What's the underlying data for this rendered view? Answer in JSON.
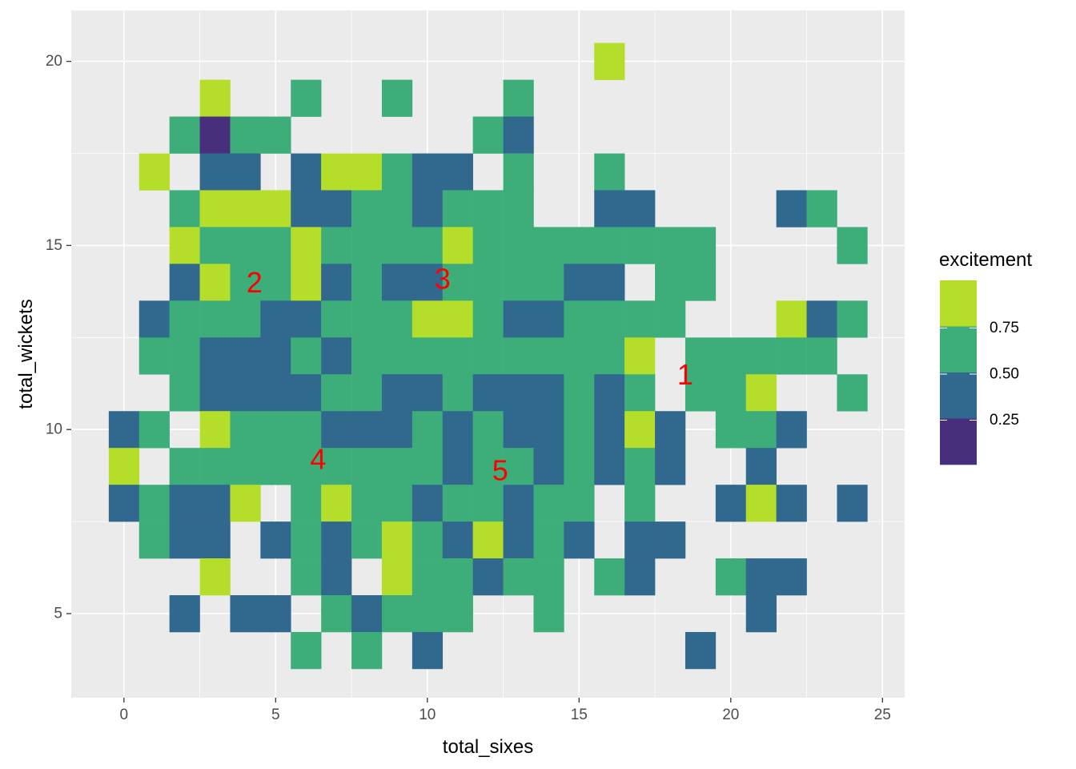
{
  "chart_data": {
    "type": "heatmap",
    "title": "",
    "xlabel": "total_sixes",
    "ylabel": "total_wickets",
    "xlim": [
      -1.7,
      25.4
    ],
    "ylim": [
      2.8,
      21.5
    ],
    "x_ticks": [
      0,
      5,
      10,
      15,
      20,
      25
    ],
    "y_ticks": [
      5,
      10,
      15,
      20
    ],
    "bin_width": 1,
    "grid": true,
    "legend": {
      "title": "excitement",
      "position": "right",
      "bins": [
        {
          "color": "#B5DE2B",
          "label": ""
        },
        {
          "color": "#3DAE7A",
          "label": "0.75"
        },
        {
          "color": "#31688E",
          "label": "0.50"
        },
        {
          "color": "#472F7D",
          "label": "0.25"
        }
      ]
    },
    "level_colors": [
      "#472F7D",
      "#31688E",
      "#3DAE7A",
      "#B5DE2B"
    ],
    "level_values": [
      0.125,
      0.375,
      0.625,
      0.875
    ],
    "cells": [
      [
        16,
        20,
        3
      ],
      [
        3,
        19,
        3
      ],
      [
        6,
        19,
        2
      ],
      [
        9,
        19,
        2
      ],
      [
        13,
        19,
        2
      ],
      [
        2,
        18,
        2
      ],
      [
        3,
        18,
        0
      ],
      [
        4,
        18,
        2
      ],
      [
        5,
        18,
        2
      ],
      [
        12,
        18,
        2
      ],
      [
        13,
        18,
        1
      ],
      [
        1,
        17,
        3
      ],
      [
        3,
        17,
        1
      ],
      [
        4,
        17,
        1
      ],
      [
        6,
        17,
        1
      ],
      [
        7,
        17,
        3
      ],
      [
        8,
        17,
        3
      ],
      [
        9,
        17,
        2
      ],
      [
        10,
        17,
        1
      ],
      [
        11,
        17,
        1
      ],
      [
        13,
        17,
        2
      ],
      [
        16,
        17,
        2
      ],
      [
        2,
        16,
        2
      ],
      [
        3,
        16,
        3
      ],
      [
        4,
        16,
        3
      ],
      [
        5,
        16,
        3
      ],
      [
        6,
        16,
        1
      ],
      [
        7,
        16,
        1
      ],
      [
        8,
        16,
        2
      ],
      [
        9,
        16,
        2
      ],
      [
        10,
        16,
        1
      ],
      [
        11,
        16,
        2
      ],
      [
        12,
        16,
        2
      ],
      [
        13,
        16,
        2
      ],
      [
        16,
        16,
        1
      ],
      [
        17,
        16,
        1
      ],
      [
        22,
        16,
        1
      ],
      [
        23,
        16,
        2
      ],
      [
        2,
        15,
        3
      ],
      [
        3,
        15,
        2
      ],
      [
        4,
        15,
        2
      ],
      [
        5,
        15,
        2
      ],
      [
        6,
        15,
        3
      ],
      [
        7,
        15,
        2
      ],
      [
        8,
        15,
        2
      ],
      [
        9,
        15,
        2
      ],
      [
        10,
        15,
        2
      ],
      [
        11,
        15,
        3
      ],
      [
        12,
        15,
        2
      ],
      [
        13,
        15,
        2
      ],
      [
        14,
        15,
        2
      ],
      [
        15,
        15,
        2
      ],
      [
        16,
        15,
        2
      ],
      [
        17,
        15,
        2
      ],
      [
        18,
        15,
        2
      ],
      [
        19,
        15,
        2
      ],
      [
        24,
        15,
        2
      ],
      [
        2,
        14,
        1
      ],
      [
        3,
        14,
        3
      ],
      [
        4,
        14,
        2
      ],
      [
        5,
        14,
        2
      ],
      [
        6,
        14,
        3
      ],
      [
        7,
        14,
        1
      ],
      [
        8,
        14,
        2
      ],
      [
        9,
        14,
        1
      ],
      [
        10,
        14,
        1
      ],
      [
        11,
        14,
        2
      ],
      [
        12,
        14,
        2
      ],
      [
        13,
        14,
        2
      ],
      [
        14,
        14,
        2
      ],
      [
        15,
        14,
        1
      ],
      [
        16,
        14,
        1
      ],
      [
        18,
        14,
        2
      ],
      [
        19,
        14,
        2
      ],
      [
        1,
        13,
        1
      ],
      [
        2,
        13,
        2
      ],
      [
        3,
        13,
        2
      ],
      [
        4,
        13,
        2
      ],
      [
        5,
        13,
        1
      ],
      [
        6,
        13,
        1
      ],
      [
        7,
        13,
        2
      ],
      [
        8,
        13,
        2
      ],
      [
        9,
        13,
        2
      ],
      [
        10,
        13,
        3
      ],
      [
        11,
        13,
        3
      ],
      [
        12,
        13,
        2
      ],
      [
        13,
        13,
        1
      ],
      [
        14,
        13,
        1
      ],
      [
        15,
        13,
        2
      ],
      [
        16,
        13,
        2
      ],
      [
        17,
        13,
        2
      ],
      [
        18,
        13,
        2
      ],
      [
        22,
        13,
        3
      ],
      [
        23,
        13,
        1
      ],
      [
        24,
        13,
        2
      ],
      [
        1,
        12,
        2
      ],
      [
        2,
        12,
        2
      ],
      [
        3,
        12,
        1
      ],
      [
        4,
        12,
        1
      ],
      [
        5,
        12,
        1
      ],
      [
        6,
        12,
        2
      ],
      [
        7,
        12,
        1
      ],
      [
        8,
        12,
        2
      ],
      [
        9,
        12,
        2
      ],
      [
        10,
        12,
        2
      ],
      [
        11,
        12,
        2
      ],
      [
        12,
        12,
        2
      ],
      [
        13,
        12,
        2
      ],
      [
        14,
        12,
        2
      ],
      [
        15,
        12,
        2
      ],
      [
        16,
        12,
        2
      ],
      [
        17,
        12,
        3
      ],
      [
        19,
        12,
        2
      ],
      [
        20,
        12,
        2
      ],
      [
        21,
        12,
        2
      ],
      [
        22,
        12,
        2
      ],
      [
        23,
        12,
        2
      ],
      [
        2,
        11,
        2
      ],
      [
        3,
        11,
        1
      ],
      [
        4,
        11,
        1
      ],
      [
        5,
        11,
        1
      ],
      [
        6,
        11,
        1
      ],
      [
        7,
        11,
        2
      ],
      [
        8,
        11,
        2
      ],
      [
        9,
        11,
        1
      ],
      [
        10,
        11,
        1
      ],
      [
        11,
        11,
        2
      ],
      [
        12,
        11,
        1
      ],
      [
        13,
        11,
        1
      ],
      [
        14,
        11,
        1
      ],
      [
        15,
        11,
        2
      ],
      [
        16,
        11,
        1
      ],
      [
        17,
        11,
        2
      ],
      [
        19,
        11,
        2
      ],
      [
        20,
        11,
        2
      ],
      [
        21,
        11,
        3
      ],
      [
        24,
        11,
        2
      ],
      [
        0,
        10,
        1
      ],
      [
        1,
        10,
        2
      ],
      [
        3,
        10,
        3
      ],
      [
        4,
        10,
        2
      ],
      [
        5,
        10,
        2
      ],
      [
        6,
        10,
        2
      ],
      [
        7,
        10,
        1
      ],
      [
        8,
        10,
        1
      ],
      [
        9,
        10,
        1
      ],
      [
        10,
        10,
        2
      ],
      [
        11,
        10,
        1
      ],
      [
        12,
        10,
        2
      ],
      [
        13,
        10,
        1
      ],
      [
        14,
        10,
        1
      ],
      [
        15,
        10,
        2
      ],
      [
        16,
        10,
        1
      ],
      [
        17,
        10,
        3
      ],
      [
        18,
        10,
        1
      ],
      [
        20,
        10,
        2
      ],
      [
        21,
        10,
        2
      ],
      [
        22,
        10,
        1
      ],
      [
        0,
        9,
        3
      ],
      [
        2,
        9,
        2
      ],
      [
        3,
        9,
        2
      ],
      [
        4,
        9,
        2
      ],
      [
        5,
        9,
        2
      ],
      [
        6,
        9,
        2
      ],
      [
        7,
        9,
        2
      ],
      [
        8,
        9,
        2
      ],
      [
        9,
        9,
        2
      ],
      [
        10,
        9,
        2
      ],
      [
        11,
        9,
        1
      ],
      [
        12,
        9,
        2
      ],
      [
        13,
        9,
        2
      ],
      [
        14,
        9,
        1
      ],
      [
        15,
        9,
        2
      ],
      [
        16,
        9,
        1
      ],
      [
        17,
        9,
        2
      ],
      [
        18,
        9,
        1
      ],
      [
        21,
        9,
        1
      ],
      [
        0,
        8,
        1
      ],
      [
        1,
        8,
        2
      ],
      [
        2,
        8,
        1
      ],
      [
        3,
        8,
        1
      ],
      [
        4,
        8,
        3
      ],
      [
        6,
        8,
        2
      ],
      [
        7,
        8,
        3
      ],
      [
        8,
        8,
        2
      ],
      [
        9,
        8,
        2
      ],
      [
        10,
        8,
        1
      ],
      [
        11,
        8,
        2
      ],
      [
        12,
        8,
        2
      ],
      [
        13,
        8,
        1
      ],
      [
        14,
        8,
        2
      ],
      [
        15,
        8,
        2
      ],
      [
        17,
        8,
        2
      ],
      [
        20,
        8,
        1
      ],
      [
        21,
        8,
        3
      ],
      [
        22,
        8,
        1
      ],
      [
        24,
        8,
        1
      ],
      [
        1,
        7,
        2
      ],
      [
        2,
        7,
        1
      ],
      [
        3,
        7,
        1
      ],
      [
        5,
        7,
        1
      ],
      [
        6,
        7,
        2
      ],
      [
        7,
        7,
        1
      ],
      [
        8,
        7,
        2
      ],
      [
        9,
        7,
        3
      ],
      [
        10,
        7,
        2
      ],
      [
        11,
        7,
        1
      ],
      [
        12,
        7,
        3
      ],
      [
        13,
        7,
        1
      ],
      [
        14,
        7,
        2
      ],
      [
        15,
        7,
        1
      ],
      [
        17,
        7,
        1
      ],
      [
        18,
        7,
        1
      ],
      [
        3,
        6,
        3
      ],
      [
        6,
        6,
        2
      ],
      [
        7,
        6,
        1
      ],
      [
        9,
        6,
        3
      ],
      [
        10,
        6,
        2
      ],
      [
        11,
        6,
        2
      ],
      [
        12,
        6,
        1
      ],
      [
        13,
        6,
        2
      ],
      [
        14,
        6,
        2
      ],
      [
        16,
        6,
        2
      ],
      [
        17,
        6,
        1
      ],
      [
        20,
        6,
        2
      ],
      [
        21,
        6,
        1
      ],
      [
        22,
        6,
        1
      ],
      [
        2,
        5,
        1
      ],
      [
        4,
        5,
        1
      ],
      [
        5,
        5,
        1
      ],
      [
        7,
        5,
        2
      ],
      [
        8,
        5,
        1
      ],
      [
        9,
        5,
        2
      ],
      [
        10,
        5,
        2
      ],
      [
        11,
        5,
        2
      ],
      [
        14,
        5,
        2
      ],
      [
        21,
        5,
        1
      ],
      [
        6,
        4,
        2
      ],
      [
        8,
        4,
        2
      ],
      [
        10,
        4,
        1
      ],
      [
        19,
        4,
        1
      ]
    ],
    "annotations": [
      {
        "text": "1",
        "x": 18.5,
        "y": 11.5
      },
      {
        "text": "2",
        "x": 4.3,
        "y": 14.0
      },
      {
        "text": "3",
        "x": 10.5,
        "y": 14.1
      },
      {
        "text": "4",
        "x": 6.4,
        "y": 9.2
      },
      {
        "text": "5",
        "x": 12.4,
        "y": 8.9
      }
    ],
    "annotation_color": "#FF0000"
  }
}
